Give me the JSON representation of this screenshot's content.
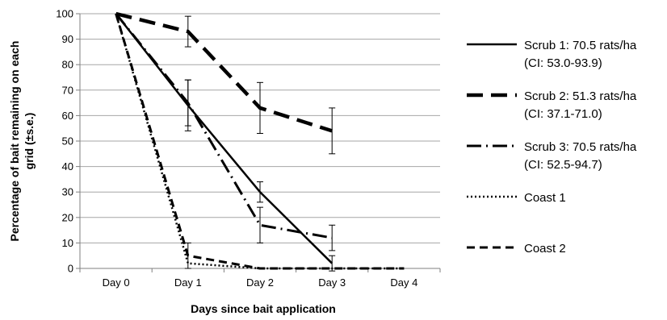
{
  "chart_data": {
    "type": "line",
    "title": "",
    "xlabel": "Days since bait application",
    "ylabel_lines": [
      "Percentage of bait remaining on each",
      "grid (±s.e.)"
    ],
    "categories": [
      "Day 0",
      "Day 1",
      "Day 2",
      "Day 3",
      "Day 4"
    ],
    "ylim": [
      0,
      100
    ],
    "yticks": [
      "0",
      "10",
      "20",
      "30",
      "40",
      "50",
      "60",
      "70",
      "80",
      "90",
      "100"
    ],
    "grid": true,
    "legend_position": "right",
    "series": [
      {
        "legend_lines": [
          "Scrub 1: 70.5 rats/ha",
          "(CI: 53.0-93.9)"
        ],
        "style": "solid",
        "x": [
          0,
          1,
          2,
          3
        ],
        "y": [
          100,
          64,
          30,
          2
        ],
        "err": [
          null,
          10,
          4,
          3
        ]
      },
      {
        "legend_lines": [
          "Scrub 2: 51.3 rats/ha",
          "(CI: 37.1-71.0)"
        ],
        "style": "longdash",
        "x": [
          0,
          1,
          2,
          3
        ],
        "y": [
          100,
          93,
          63,
          54
        ],
        "err": [
          null,
          6,
          10,
          9
        ]
      },
      {
        "legend_lines": [
          "Scrub 3: 70.5 rats/ha",
          "(CI: 52.5-94.7)"
        ],
        "style": "dashdot",
        "x": [
          0,
          1,
          2,
          3
        ],
        "y": [
          100,
          65,
          17,
          12
        ],
        "err": [
          null,
          9,
          7,
          5
        ]
      },
      {
        "legend_lines": [
          "Coast 1"
        ],
        "style": "dotted",
        "x": [
          0,
          1,
          2,
          3,
          4
        ],
        "y": [
          100,
          2,
          0,
          0,
          0
        ],
        "err": [
          null,
          null,
          null,
          null,
          null
        ]
      },
      {
        "legend_lines": [
          "Coast 2"
        ],
        "style": "dashed",
        "x": [
          0,
          1,
          2,
          3,
          4
        ],
        "y": [
          100,
          5,
          0,
          0,
          0
        ],
        "err": [
          null,
          5,
          null,
          null,
          null
        ]
      }
    ]
  }
}
